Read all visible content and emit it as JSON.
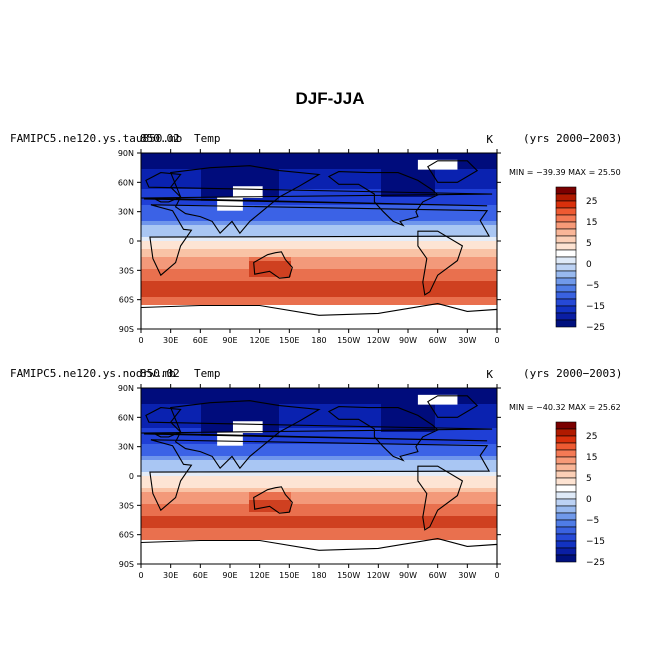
{
  "figure_title": "DJF-JJA",
  "chart_data": [
    {
      "type": "heatmap",
      "left_title": "FAMIPC5.ne120.ys.tau850.mb",
      "center_title": "850.02",
      "variable": "Temp",
      "units": "K",
      "period": "(yrs 2000−2003)",
      "stats_text": "MIN = −39.39  MAX =  25.50",
      "min": -39.39,
      "max": 25.5
    },
    {
      "type": "heatmap",
      "left_title": "FAMIPC5.ne120.ys.nodrw.mb",
      "center_title": "850.02",
      "variable": "Temp",
      "units": "K",
      "period": "(yrs 2000−2003)",
      "stats_text": "MIN = −40.32  MAX =  25.62",
      "min": -40.32,
      "max": 25.62
    }
  ],
  "x_ticks": [
    "0",
    "30E",
    "60E",
    "90E",
    "120E",
    "150E",
    "180",
    "150W",
    "120W",
    "90W",
    "60W",
    "30W",
    "0"
  ],
  "y_ticks": [
    "90N",
    "60N",
    "30N",
    "0",
    "30S",
    "60S",
    "90S"
  ],
  "colorbar": {
    "labels": [
      "25",
      "15",
      "5",
      "0",
      "−5",
      "−15",
      "−25"
    ],
    "colors": [
      "#7a0000",
      "#b01a00",
      "#d9300c",
      "#ee5a32",
      "#f47a55",
      "#f79a78",
      "#f9b698",
      "#fbcfb6",
      "#fde3d2",
      "#ffffff",
      "#dfeaf8",
      "#bcd2f4",
      "#98b9ef",
      "#7099ea",
      "#4f7ce6",
      "#3a62e0",
      "#2649d6",
      "#1232c2",
      "#0a1ea4",
      "#00107e"
    ]
  },
  "map_colors": {
    "missing": "#ffffff",
    "coast": "#000000"
  }
}
